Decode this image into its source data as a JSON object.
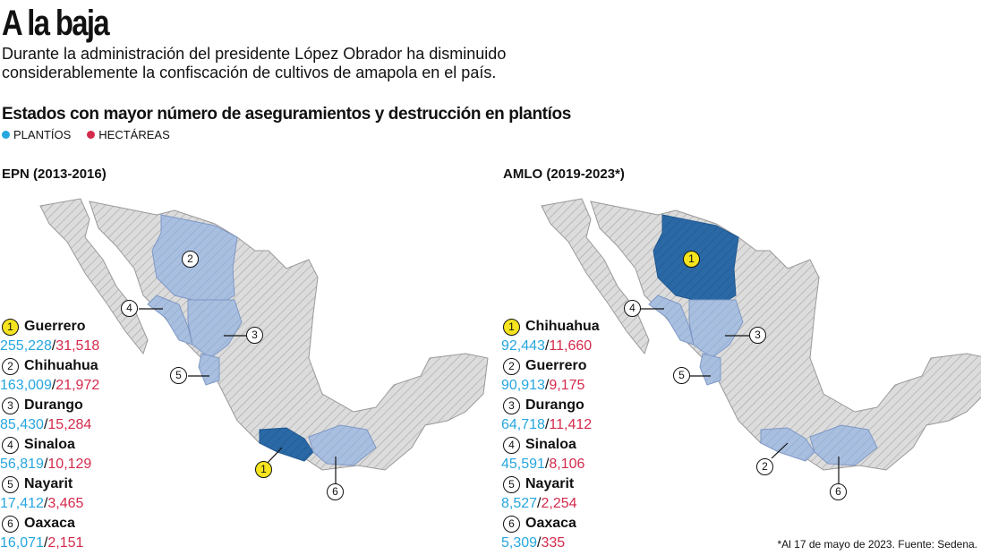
{
  "title": "A la baja",
  "subtitle": "Durante la administración del presidente López Obrador ha disminuido considerablemente la confiscación de cultivos de amapola en el país.",
  "heading": "Estados con mayor número de aseguramientos y destrucción en plantíos",
  "legend": [
    {
      "label": "PLANTÍOS",
      "color": "#26a6df"
    },
    {
      "label": "HECTÁREAS",
      "color": "#d42a4c"
    }
  ],
  "colors": {
    "top_state": "#2a69a6",
    "other_ranked": "#a9bfe0",
    "rest": "#dcdcdc",
    "badge_first": "#f5e41e"
  },
  "epn": {
    "title": "EPN (2013-2016)",
    "rankings": [
      {
        "rank": "1",
        "state": "Guerrero",
        "plantios": "255,228",
        "sep": "/",
        "hectareas": "31,518"
      },
      {
        "rank": "2",
        "state": "Chihuahua",
        "plantios": "163,009",
        "sep": "/",
        "hectareas": "21,972"
      },
      {
        "rank": "3",
        "state": "Durango",
        "plantios": "85,430",
        "sep": "/",
        "hectareas": "15,284"
      },
      {
        "rank": "4",
        "state": "Sinaloa",
        "plantios": "56,819",
        "sep": "/",
        "hectareas": "10,129"
      },
      {
        "rank": "5",
        "state": "Nayarit",
        "plantios": "17,412",
        "sep": "/",
        "hectareas": "3,465"
      },
      {
        "rank": "6",
        "state": "Oaxaca",
        "plantios": "16,071",
        "sep": "/",
        "hectareas": "2,151"
      }
    ]
  },
  "amlo": {
    "title": "AMLO (2019-2023*)",
    "rankings": [
      {
        "rank": "1",
        "state": "Chihuahua",
        "plantios": "92,443",
        "sep": "/",
        "hectareas": "11,660"
      },
      {
        "rank": "2",
        "state": "Guerrero",
        "plantios": "90,913",
        "sep": "/",
        "hectareas": "9,175"
      },
      {
        "rank": "3",
        "state": "Durango",
        "plantios": "64,718",
        "sep": "/",
        "hectareas": "11,412"
      },
      {
        "rank": "4",
        "state": "Sinaloa",
        "plantios": "45,591",
        "sep": "/",
        "hectareas": "8,106"
      },
      {
        "rank": "5",
        "state": "Nayarit",
        "plantios": "8,527",
        "sep": "/",
        "hectareas": "2,254"
      },
      {
        "rank": "6",
        "state": "Oaxaca",
        "plantios": "5,309",
        "sep": "/",
        "hectareas": "335"
      }
    ]
  },
  "footnote": "*Al 17 de mayo de 2023. Fuente: Sedena."
}
